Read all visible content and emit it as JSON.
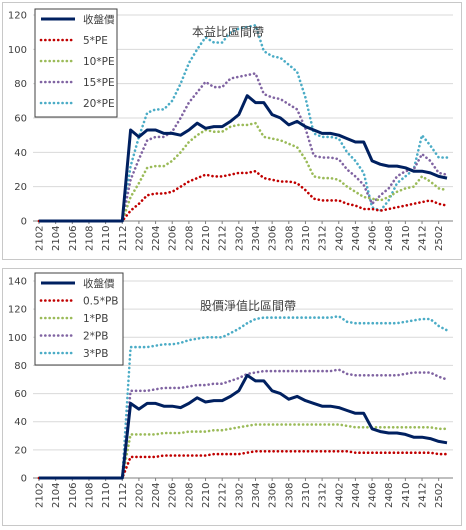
{
  "colors": {
    "price": "#002060",
    "band1": "#c00000",
    "band2": "#9bbb59",
    "band3": "#8064a2",
    "band4": "#4bacc6",
    "grid": "#d9d9d9",
    "axis": "#7f7f7f"
  },
  "chart_data": [
    {
      "type": "line",
      "title": "本益比區間帶",
      "ylim": [
        0,
        120
      ],
      "yticks": [
        0,
        20,
        40,
        60,
        80,
        100,
        120
      ],
      "grid": "horizontal",
      "legend": "top-left",
      "x_tick_labels": [
        "2102",
        "2104",
        "2106",
        "2108",
        "2110",
        "2112",
        "2202",
        "2204",
        "2206",
        "2208",
        "2210",
        "2212",
        "2302",
        "2304",
        "2306",
        "2308",
        "2310",
        "2312",
        "2402",
        "2404",
        "2406",
        "2408",
        "2410",
        "2412",
        "2502"
      ],
      "x": [
        "2102",
        "2103",
        "2104",
        "2105",
        "2106",
        "2107",
        "2108",
        "2109",
        "2110",
        "2111",
        "2112",
        "2201",
        "2202",
        "2203",
        "2204",
        "2205",
        "2206",
        "2207",
        "2208",
        "2209",
        "2210",
        "2211",
        "2212",
        "2301",
        "2302",
        "2303",
        "2304",
        "2305",
        "2306",
        "2307",
        "2308",
        "2309",
        "2310",
        "2311",
        "2312",
        "2401",
        "2402",
        "2403",
        "2404",
        "2405",
        "2406",
        "2407",
        "2408",
        "2409",
        "2410",
        "2411",
        "2412",
        "2501",
        "2502",
        "2503"
      ],
      "series": [
        {
          "name": "收盤價",
          "style": "solid",
          "values": [
            0,
            0,
            0,
            0,
            0,
            0,
            0,
            0,
            0,
            0,
            0,
            53,
            49,
            53,
            53,
            51,
            51,
            50,
            53,
            57,
            54,
            55,
            55,
            58,
            62,
            73,
            69,
            69,
            62,
            60,
            56,
            58,
            55,
            53,
            51,
            51,
            50,
            48,
            46,
            46,
            35,
            33,
            32,
            32,
            31,
            29,
            29,
            28,
            26,
            25
          ]
        },
        {
          "name": "5*PE",
          "style": "dotted",
          "values": [
            0,
            0,
            0,
            0,
            0,
            0,
            0,
            0,
            0,
            0,
            0,
            6,
            10,
            15,
            16,
            16,
            17,
            20,
            23,
            25,
            27,
            26,
            26,
            27,
            28,
            28,
            29,
            25,
            24,
            23,
            23,
            22,
            18,
            13,
            12,
            12,
            12,
            10,
            9,
            7,
            7,
            6,
            7,
            8,
            9,
            10,
            11,
            12,
            10,
            9
          ]
        },
        {
          "name": "10*PE",
          "style": "dotted",
          "values": [
            0,
            0,
            0,
            0,
            0,
            0,
            0,
            0,
            0,
            0,
            0,
            14,
            22,
            31,
            32,
            32,
            35,
            40,
            46,
            50,
            53,
            52,
            52,
            55,
            56,
            56,
            57,
            49,
            48,
            47,
            45,
            43,
            36,
            26,
            25,
            25,
            24,
            20,
            17,
            14,
            13,
            12,
            14,
            17,
            19,
            20,
            26,
            23,
            19,
            18
          ]
        },
        {
          "name": "15*PE",
          "style": "dotted",
          "values": [
            0,
            0,
            0,
            0,
            0,
            0,
            0,
            0,
            0,
            0,
            0,
            24,
            36,
            47,
            49,
            49,
            52,
            60,
            69,
            75,
            81,
            78,
            78,
            83,
            84,
            85,
            86,
            74,
            72,
            71,
            68,
            65,
            54,
            38,
            37,
            37,
            36,
            30,
            26,
            21,
            10,
            15,
            19,
            26,
            29,
            30,
            39,
            35,
            28,
            27
          ]
        },
        {
          "name": "20*PE",
          "style": "dotted",
          "values": [
            0,
            0,
            0,
            0,
            0,
            0,
            0,
            0,
            0,
            0,
            0,
            32,
            49,
            63,
            65,
            65,
            70,
            80,
            92,
            100,
            107,
            104,
            104,
            110,
            112,
            113,
            114,
            99,
            96,
            95,
            91,
            87,
            72,
            51,
            49,
            49,
            48,
            40,
            35,
            28,
            8,
            6,
            12,
            22,
            26,
            30,
            50,
            44,
            37,
            37
          ]
        }
      ]
    },
    {
      "type": "line",
      "title": "股價淨值比區間帶",
      "ylim": [
        0,
        140
      ],
      "yticks": [
        0,
        20,
        40,
        60,
        80,
        100,
        120,
        140
      ],
      "grid": "horizontal",
      "legend": "top-left",
      "x_tick_labels": [
        "2102",
        "2104",
        "2106",
        "2108",
        "2110",
        "2112",
        "2202",
        "2204",
        "2206",
        "2208",
        "2210",
        "2212",
        "2302",
        "2304",
        "2306",
        "2308",
        "2310",
        "2312",
        "2402",
        "2404",
        "2406",
        "2408",
        "2410",
        "2412",
        "2502"
      ],
      "x": [
        "2102",
        "2103",
        "2104",
        "2105",
        "2106",
        "2107",
        "2108",
        "2109",
        "2110",
        "2111",
        "2112",
        "2201",
        "2202",
        "2203",
        "2204",
        "2205",
        "2206",
        "2207",
        "2208",
        "2209",
        "2210",
        "2211",
        "2212",
        "2301",
        "2302",
        "2303",
        "2304",
        "2305",
        "2306",
        "2307",
        "2308",
        "2309",
        "2310",
        "2311",
        "2312",
        "2401",
        "2402",
        "2403",
        "2404",
        "2405",
        "2406",
        "2407",
        "2408",
        "2409",
        "2410",
        "2411",
        "2412",
        "2501",
        "2502",
        "2503"
      ],
      "series": [
        {
          "name": "收盤價",
          "style": "solid",
          "values": [
            0,
            0,
            0,
            0,
            0,
            0,
            0,
            0,
            0,
            0,
            0,
            53,
            49,
            53,
            53,
            51,
            51,
            50,
            53,
            57,
            54,
            55,
            55,
            58,
            62,
            73,
            69,
            69,
            62,
            60,
            56,
            58,
            55,
            53,
            51,
            51,
            50,
            48,
            46,
            46,
            35,
            33,
            32,
            32,
            31,
            29,
            29,
            28,
            26,
            25
          ]
        },
        {
          "name": "0.5*PB",
          "style": "dotted",
          "values": [
            0,
            0,
            0,
            0,
            0,
            0,
            0,
            0,
            0,
            0,
            0,
            15,
            15,
            15,
            15,
            16,
            16,
            16,
            16,
            16,
            16,
            17,
            17,
            17,
            17,
            18,
            19,
            19,
            19,
            19,
            19,
            19,
            19,
            19,
            19,
            19,
            19,
            19,
            18,
            18,
            18,
            18,
            18,
            18,
            18,
            18,
            18,
            18,
            17,
            17
          ]
        },
        {
          "name": "1*PB",
          "style": "dotted",
          "values": [
            0,
            0,
            0,
            0,
            0,
            0,
            0,
            0,
            0,
            0,
            0,
            31,
            31,
            31,
            31,
            32,
            32,
            32,
            33,
            33,
            33,
            34,
            34,
            35,
            36,
            37,
            38,
            38,
            38,
            38,
            38,
            38,
            38,
            38,
            38,
            38,
            38,
            37,
            36,
            36,
            36,
            36,
            36,
            36,
            36,
            36,
            36,
            36,
            35,
            35
          ]
        },
        {
          "name": "2*PB",
          "style": "dotted",
          "values": [
            0,
            0,
            0,
            0,
            0,
            0,
            0,
            0,
            0,
            0,
            0,
            62,
            62,
            62,
            63,
            64,
            64,
            64,
            65,
            66,
            66,
            67,
            67,
            69,
            71,
            74,
            75,
            76,
            76,
            76,
            76,
            76,
            76,
            76,
            76,
            76,
            77,
            74,
            73,
            73,
            73,
            73,
            73,
            73,
            74,
            75,
            75,
            75,
            72,
            70
          ]
        },
        {
          "name": "3*PB",
          "style": "dotted",
          "values": [
            0,
            0,
            0,
            0,
            0,
            0,
            0,
            0,
            0,
            0,
            0,
            93,
            93,
            93,
            94,
            95,
            95,
            96,
            98,
            99,
            100,
            100,
            100,
            103,
            106,
            110,
            113,
            114,
            114,
            114,
            114,
            114,
            114,
            114,
            114,
            114,
            115,
            111,
            110,
            110,
            110,
            110,
            110,
            110,
            111,
            112,
            113,
            113,
            108,
            105
          ]
        }
      ]
    }
  ]
}
